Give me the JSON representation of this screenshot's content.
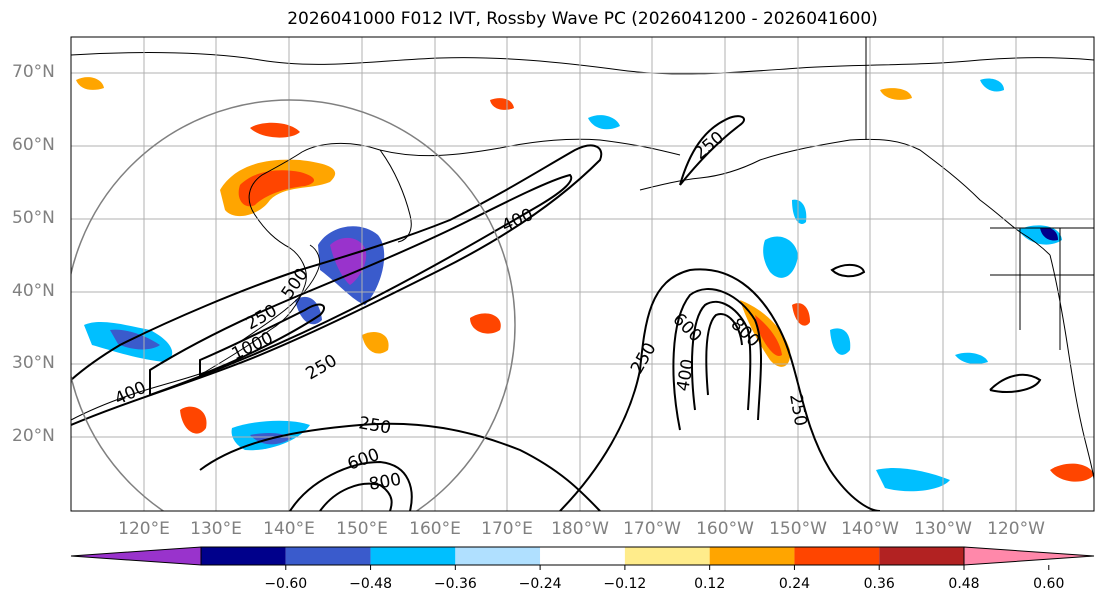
{
  "title": "2026041000 F012 IVT, Rossby Wave PC (2026041200 - 2026041600)",
  "map": {
    "lat_labels": [
      "70°N",
      "60°N",
      "50°N",
      "40°N",
      "30°N",
      "20°N"
    ],
    "lon_labels": [
      "120°E",
      "130°E",
      "140°E",
      "150°E",
      "160°E",
      "170°E",
      "180°W",
      "170°W",
      "160°W",
      "150°W",
      "140°W",
      "130°W",
      "120°W"
    ],
    "contour_labels": [
      "400",
      "250",
      "250",
      "1000",
      "500",
      "250",
      "400",
      "600",
      "800",
      "250",
      "400",
      "600",
      "800",
      "250",
      "250"
    ],
    "colors": {
      "land_outline": "#000000",
      "grid": "#b0b0b0",
      "circle": "#808080",
      "contour": "#000000"
    }
  },
  "colorbar": {
    "ticks": [
      "−0.60",
      "−0.48",
      "−0.36",
      "−0.24",
      "−0.12",
      "0.12",
      "0.24",
      "0.36",
      "0.48",
      "0.60"
    ],
    "colors": [
      "#9933cc",
      "#00008b",
      "#3a5bcc",
      "#00bfff",
      "#b0e0ff",
      "#ffffff",
      "#ffec8b",
      "#ffa500",
      "#ff4500",
      "#b22222",
      "#ff88aa"
    ],
    "extend": "both"
  }
}
